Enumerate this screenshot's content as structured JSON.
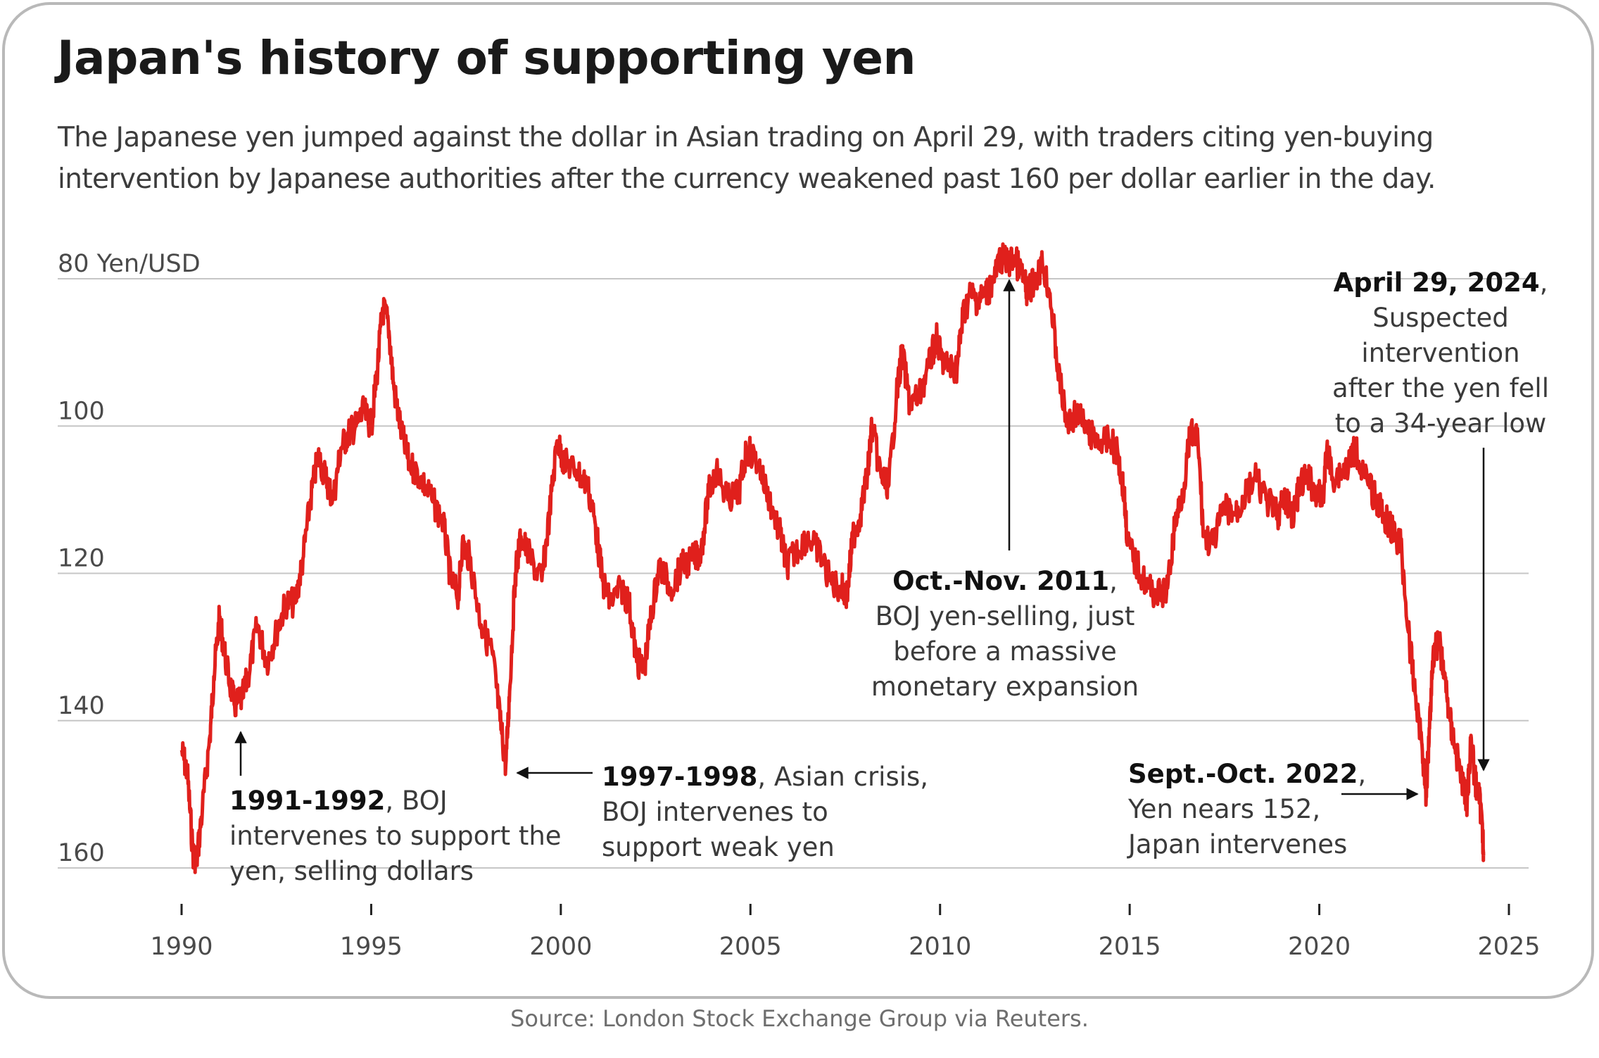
{
  "title": "Japan's history of supporting yen",
  "subtitle": "The Japanese yen jumped against the dollar in Asian trading on April 29, with traders citing yen-buying intervention by Japanese authorities after the currency weakened past 160 per dollar earlier in the day.",
  "source": "Source: London Stock Exchange Group via Reuters.",
  "colors": {
    "line": "#e0201c",
    "grid": "#c6c6c6",
    "axis": "#222222"
  },
  "chart_data": {
    "type": "line",
    "ylabel": "Yen/USD",
    "y_inverted": true,
    "ylim": [
      160,
      80
    ],
    "xlim": [
      1990,
      2025
    ],
    "grid": true,
    "y_ticks": [
      "80 Yen/USD",
      "100",
      "120",
      "140",
      "160"
    ],
    "x_ticks": [
      "1990",
      "1995",
      "2000",
      "2005",
      "2010",
      "2015",
      "2020",
      "2025"
    ],
    "series": [
      {
        "values_desc": "USD/JPY exchange rate",
        "points": [
          [
            1990.0,
            144
          ],
          [
            1990.15,
            147
          ],
          [
            1990.3,
            158
          ],
          [
            1990.4,
            159
          ],
          [
            1990.55,
            152
          ],
          [
            1990.75,
            142
          ],
          [
            1990.85,
            134
          ],
          [
            1991.0,
            126
          ],
          [
            1991.2,
            133
          ],
          [
            1991.4,
            138
          ],
          [
            1991.6,
            137
          ],
          [
            1991.75,
            134
          ],
          [
            1992.0,
            127
          ],
          [
            1992.25,
            132
          ],
          [
            1992.5,
            128
          ],
          [
            1992.75,
            124
          ],
          [
            1993.0,
            124
          ],
          [
            1993.2,
            118
          ],
          [
            1993.4,
            110
          ],
          [
            1993.6,
            104
          ],
          [
            1993.8,
            107
          ],
          [
            1994.0,
            110
          ],
          [
            1994.2,
            103
          ],
          [
            1994.4,
            101
          ],
          [
            1994.6,
            100
          ],
          [
            1994.8,
            98
          ],
          [
            1995.0,
            100
          ],
          [
            1995.15,
            93
          ],
          [
            1995.3,
            84
          ],
          [
            1995.45,
            86
          ],
          [
            1995.6,
            95
          ],
          [
            1995.8,
            101
          ],
          [
            1996.0,
            105
          ],
          [
            1996.3,
            107
          ],
          [
            1996.6,
            110
          ],
          [
            1996.9,
            113
          ],
          [
            1997.1,
            121
          ],
          [
            1997.3,
            123
          ],
          [
            1997.4,
            116
          ],
          [
            1997.6,
            118
          ],
          [
            1997.9,
            127
          ],
          [
            1998.2,
            131
          ],
          [
            1998.4,
            140
          ],
          [
            1998.55,
            146
          ],
          [
            1998.65,
            136
          ],
          [
            1998.8,
            120
          ],
          [
            1998.95,
            115
          ],
          [
            1999.2,
            118
          ],
          [
            1999.5,
            121
          ],
          [
            1999.7,
            112
          ],
          [
            1999.9,
            102
          ],
          [
            2000.1,
            105
          ],
          [
            2000.4,
            106
          ],
          [
            2000.7,
            108
          ],
          [
            2000.9,
            113
          ],
          [
            2001.1,
            121
          ],
          [
            2001.3,
            124
          ],
          [
            2001.6,
            122
          ],
          [
            2001.8,
            124
          ],
          [
            2002.0,
            132
          ],
          [
            2002.2,
            133
          ],
          [
            2002.4,
            125
          ],
          [
            2002.6,
            119
          ],
          [
            2002.9,
            122
          ],
          [
            2003.2,
            119
          ],
          [
            2003.5,
            118
          ],
          [
            2003.7,
            117
          ],
          [
            2003.9,
            109
          ],
          [
            2004.1,
            106
          ],
          [
            2004.4,
            110
          ],
          [
            2004.7,
            109
          ],
          [
            2004.9,
            103
          ],
          [
            2005.2,
            105
          ],
          [
            2005.5,
            110
          ],
          [
            2005.8,
            115
          ],
          [
            2005.95,
            119
          ],
          [
            2006.2,
            117
          ],
          [
            2006.5,
            115
          ],
          [
            2006.8,
            117
          ],
          [
            2007.1,
            121
          ],
          [
            2007.4,
            122
          ],
          [
            2007.55,
            123
          ],
          [
            2007.7,
            115
          ],
          [
            2007.9,
            112
          ],
          [
            2008.1,
            106
          ],
          [
            2008.2,
            100
          ],
          [
            2008.45,
            107
          ],
          [
            2008.65,
            108
          ],
          [
            2008.85,
            96
          ],
          [
            2009.0,
            90
          ],
          [
            2009.2,
            97
          ],
          [
            2009.45,
            96
          ],
          [
            2009.7,
            92
          ],
          [
            2009.9,
            88
          ],
          [
            2010.05,
            91
          ],
          [
            2010.25,
            92
          ],
          [
            2010.45,
            92
          ],
          [
            2010.6,
            85
          ],
          [
            2010.8,
            82
          ],
          [
            2011.0,
            83
          ],
          [
            2011.2,
            82
          ],
          [
            2011.4,
            80.5
          ],
          [
            2011.6,
            77
          ],
          [
            2011.8,
            78
          ],
          [
            2011.95,
            77
          ],
          [
            2012.2,
            80
          ],
          [
            2012.3,
            82
          ],
          [
            2012.5,
            80
          ],
          [
            2012.7,
            78
          ],
          [
            2012.9,
            82
          ],
          [
            2013.1,
            92
          ],
          [
            2013.35,
            100
          ],
          [
            2013.6,
            98
          ],
          [
            2013.9,
            101
          ],
          [
            2014.2,
            102
          ],
          [
            2014.5,
            102
          ],
          [
            2014.7,
            104
          ],
          [
            2014.85,
            109
          ],
          [
            2014.95,
            116
          ],
          [
            2015.2,
            119
          ],
          [
            2015.5,
            122
          ],
          [
            2015.8,
            123
          ],
          [
            2016.0,
            122
          ],
          [
            2016.2,
            113
          ],
          [
            2016.4,
            109
          ],
          [
            2016.6,
            101
          ],
          [
            2016.8,
            102
          ],
          [
            2016.95,
            115
          ],
          [
            2017.2,
            116
          ],
          [
            2017.5,
            111
          ],
          [
            2017.8,
            112
          ],
          [
            2018.0,
            110
          ],
          [
            2018.3,
            107
          ],
          [
            2018.6,
            110
          ],
          [
            2018.9,
            112
          ],
          [
            2019.1,
            110
          ],
          [
            2019.3,
            112
          ],
          [
            2019.5,
            108
          ],
          [
            2019.7,
            107
          ],
          [
            2019.9,
            109
          ],
          [
            2020.1,
            110
          ],
          [
            2020.2,
            103
          ],
          [
            2020.35,
            107
          ],
          [
            2020.6,
            106
          ],
          [
            2020.8,
            105
          ],
          [
            2020.95,
            103
          ],
          [
            2021.2,
            107
          ],
          [
            2021.5,
            110
          ],
          [
            2021.8,
            113
          ],
          [
            2022.0,
            115
          ],
          [
            2022.15,
            116
          ],
          [
            2022.35,
            128
          ],
          [
            2022.5,
            135
          ],
          [
            2022.7,
            143
          ],
          [
            2022.82,
            150
          ],
          [
            2022.9,
            141
          ],
          [
            2023.0,
            131
          ],
          [
            2023.15,
            129
          ],
          [
            2023.3,
            134
          ],
          [
            2023.45,
            140
          ],
          [
            2023.6,
            144
          ],
          [
            2023.8,
            149
          ],
          [
            2023.9,
            151
          ],
          [
            2024.0,
            142
          ],
          [
            2024.1,
            148
          ],
          [
            2024.2,
            150
          ],
          [
            2024.3,
            154
          ],
          [
            2024.33,
            158.3
          ]
        ]
      }
    ],
    "annotations": [
      {
        "id": "a1991",
        "bold": "1991-1992",
        "rest": ", BOJ",
        "lines": [
          "intervenes to support the",
          "yen, selling dollars"
        ]
      },
      {
        "id": "a1997",
        "bold": "1997-1998",
        "rest": ", Asian crisis,",
        "lines": [
          "BOJ intervenes to",
          "support weak yen"
        ]
      },
      {
        "id": "a2011",
        "bold": "Oct.-Nov. 2011",
        "rest": ",",
        "lines": [
          "BOJ yen-selling, just",
          "before a massive",
          "monetary expansion"
        ]
      },
      {
        "id": "a2022",
        "bold": "Sept.-Oct. 2022",
        "rest": ",",
        "lines": [
          "Yen nears 152,",
          "Japan intervenes"
        ]
      },
      {
        "id": "a2024",
        "bold": "April 29, 2024",
        "rest": ",",
        "lines": [
          "Suspected",
          "intervention",
          "after the yen fell",
          "to a 34-year low"
        ]
      }
    ]
  }
}
